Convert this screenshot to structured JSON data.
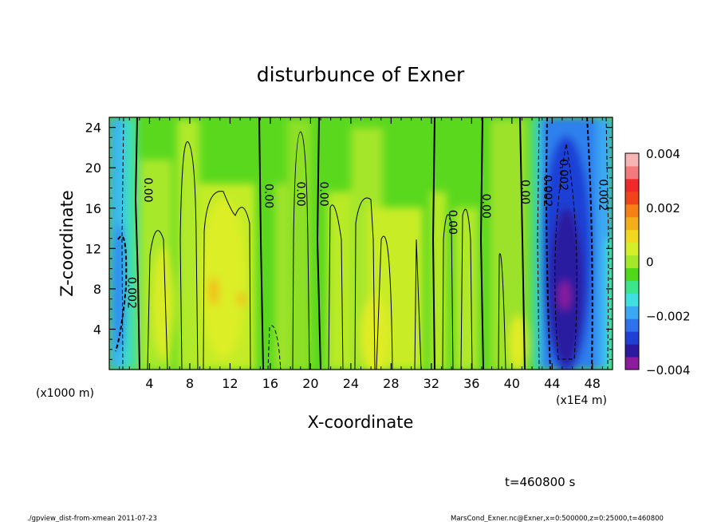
{
  "chart_data": {
    "type": "heatmap",
    "title": "disturbunce of Exner",
    "xlabel": "X-coordinate",
    "ylabel": "Z-coordinate",
    "x_unit_label": "(x1E4 m)",
    "y_unit_label": "(x1000 m)",
    "xlim": [
      0,
      50
    ],
    "ylim": [
      0,
      25
    ],
    "x_ticks": [
      4,
      8,
      12,
      16,
      20,
      24,
      28,
      32,
      36,
      40,
      44,
      48
    ],
    "y_ticks": [
      4,
      8,
      12,
      16,
      20,
      24
    ],
    "colorbar": {
      "range": [
        -0.004,
        0.004
      ],
      "tick_values": [
        0.004,
        0.002,
        0,
        -0.002,
        -0.004
      ],
      "tick_labels": [
        "0.004",
        "0.002",
        "0",
        "−0.002",
        "−0.004"
      ]
    },
    "contour_labels": [
      {
        "text": "0.00",
        "x": 3.0,
        "y": 17.8
      },
      {
        "text": "0.00",
        "x": 15.0,
        "y": 17.2
      },
      {
        "text": "0.00",
        "x": 18.2,
        "y": 17.4
      },
      {
        "text": "0.00",
        "x": 20.5,
        "y": 17.4
      },
      {
        "text": "0.00",
        "x": 33.3,
        "y": 14.6
      },
      {
        "text": "0.00",
        "x": 36.6,
        "y": 16.2
      },
      {
        "text": "0.00",
        "x": 40.5,
        "y": 17.6
      },
      {
        "text": "0.002",
        "x": 42.7,
        "y": 17.7
      },
      {
        "text": "0.002",
        "x": 44.3,
        "y": 19.3
      },
      {
        "text": "0.002",
        "x": 48.2,
        "y": 17.3
      },
      {
        "text": "0.002",
        "x": 1.4,
        "y": 7.6
      }
    ],
    "contour_lines_x": [
      2.8,
      7.6,
      10.4,
      14.6,
      18.0,
      20.2,
      22.6,
      26.5,
      30.8,
      34.2,
      36.5,
      40.0
    ],
    "field_regions": [
      {
        "x": 1.0,
        "z": 10,
        "value": -0.002
      },
      {
        "x": 6.5,
        "z": 6,
        "value": 0.001
      },
      {
        "x": 12.0,
        "z": 7,
        "value": 0.0012
      },
      {
        "x": 28.0,
        "z": 6,
        "value": 0.0008
      },
      {
        "x": 45.5,
        "z": 8,
        "value": -0.0038
      },
      {
        "x": 45.5,
        "z": 16,
        "value": -0.003
      },
      {
        "x": 49.0,
        "z": 4,
        "value": -0.0015
      }
    ],
    "time_label": "t=460800 s"
  },
  "footer": {
    "left": "./gpview_dist-from-xmean  2011-07-23",
    "right": "MarsCond_Exner.nc@Exner,x=0:500000,z=0:25000,t=460800"
  },
  "colors": {
    "background_green": "#66dd33",
    "palette": [
      "#8e1a9e",
      "#2b1aa0",
      "#1f3fd6",
      "#2f72ee",
      "#3aa8f3",
      "#3fe0e0",
      "#3ce48a",
      "#4ed818",
      "#a4e82a",
      "#d4ee28",
      "#f2d81e",
      "#f4ae1a",
      "#f67f16",
      "#f2441c",
      "#f0282a",
      "#f27a7a",
      "#f7b4b4"
    ]
  }
}
